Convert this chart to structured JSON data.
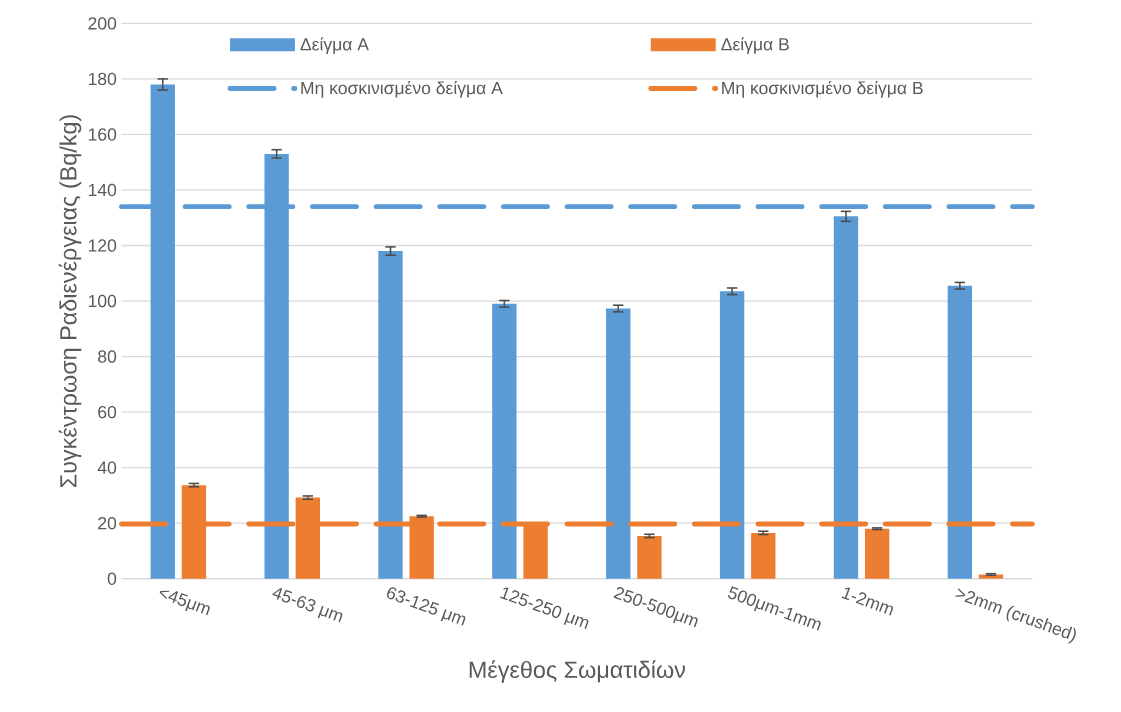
{
  "chart_data": {
    "type": "bar",
    "xlabel": "Μέγεθος Σωματιδίων",
    "ylabel": "Συγκέντρωση Ραδιενέργειας (Bq/kg)",
    "categories": [
      "<45μm",
      "45-63 μm",
      "63-125 μm",
      "125-250 μm",
      "250-500μm",
      "500μm-1mm",
      "1-2mm",
      ">2mm (crushed)"
    ],
    "series": [
      {
        "name": "Δείγμα Α",
        "color": "#5b9bd5",
        "values": [
          178,
          153,
          118,
          99,
          97.3,
          103.5,
          130.5,
          105.5
        ],
        "errors": [
          2,
          1.5,
          1.5,
          1.2,
          1.2,
          1.2,
          1.8,
          1.2
        ]
      },
      {
        "name": "Δείγμα Β",
        "color": "#ed7d31",
        "values": [
          33.7,
          29.2,
          22.5,
          20,
          15.4,
          16.5,
          18,
          1.5
        ],
        "errors": [
          0.6,
          0.6,
          0.3,
          null,
          0.6,
          0.6,
          0.3,
          0.3
        ]
      }
    ],
    "ref_lines": [
      {
        "axis": "y",
        "value": 134,
        "label": "Μη κοσκινισμένο δείγμα Α",
        "color": "#5b9bd5",
        "line_style": "dashed"
      },
      {
        "axis": "y",
        "value": 19.7,
        "label": "Μη κοσκινισμένο δείγμα Β",
        "color": "#ed7d31",
        "line_style": "dashed"
      }
    ],
    "ylim": [
      0,
      200
    ],
    "yticks": [
      0,
      20,
      40,
      60,
      80,
      100,
      120,
      140,
      160,
      180,
      200
    ],
    "grid": "y",
    "legend": "top"
  }
}
